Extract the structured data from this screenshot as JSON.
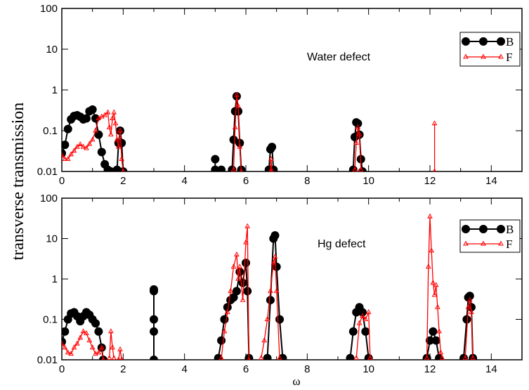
{
  "ylabel": "transverse transmission",
  "xlabel": "ω",
  "chart_data": [
    {
      "type": "line",
      "annotation": "Water defect",
      "xlim": [
        0,
        15
      ],
      "ylim": [
        0.01,
        100
      ],
      "yscale": "log",
      "xticks": [
        "0",
        "2",
        "4",
        "6",
        "8",
        "10",
        "12",
        "14"
      ],
      "yticks": [
        "0.01",
        "0.1",
        "1",
        "10",
        "100"
      ],
      "legend": "top-right",
      "series": [
        {
          "name": "B",
          "color": "#000000",
          "marker": "circle",
          "segments": [
            [
              [
                0.0,
                0.028
              ],
              [
                0.1,
                0.045
              ],
              [
                0.2,
                0.11
              ],
              [
                0.3,
                0.19
              ],
              [
                0.4,
                0.23
              ],
              [
                0.5,
                0.24
              ],
              [
                0.6,
                0.22
              ],
              [
                0.7,
                0.19
              ],
              [
                0.8,
                0.2
              ],
              [
                0.9,
                0.3
              ],
              [
                1.0,
                0.33
              ],
              [
                1.1,
                0.2
              ],
              [
                1.2,
                0.08
              ],
              [
                1.3,
                0.03
              ],
              [
                1.4,
                0.015
              ],
              [
                1.5,
                0.011
              ],
              [
                1.6,
                0.01
              ]
            ],
            [
              [
                1.8,
                0.011
              ],
              [
                1.85,
                0.05
              ],
              [
                1.9,
                0.1
              ],
              [
                1.95,
                0.05
              ],
              [
                2.0,
                0.01
              ]
            ],
            [
              [
                5.0,
                0.02
              ],
              [
                5.0,
                0.011
              ]
            ],
            [
              [
                5.2,
                0.011
              ]
            ],
            [
              [
                5.55,
                0.011
              ],
              [
                5.6,
                0.06
              ],
              [
                5.65,
                0.3
              ],
              [
                5.7,
                0.7
              ],
              [
                5.75,
                0.3
              ],
              [
                5.8,
                0.05
              ],
              [
                5.85,
                0.011
              ]
            ],
            [
              [
                6.75,
                0.011
              ],
              [
                6.8,
                0.035
              ],
              [
                6.85,
                0.04
              ],
              [
                6.9,
                0.011
              ]
            ],
            [
              [
                9.5,
                0.011
              ],
              [
                9.55,
                0.07
              ],
              [
                9.6,
                0.16
              ],
              [
                9.65,
                0.15
              ],
              [
                9.7,
                0.08
              ],
              [
                9.75,
                0.02
              ],
              [
                9.8,
                0.01
              ]
            ]
          ]
        },
        {
          "name": "F",
          "color": "#ff0000",
          "marker": "triangle",
          "segments": [
            [
              [
                0.0,
                0.025
              ],
              [
                0.1,
                0.02
              ],
              [
                0.2,
                0.02
              ],
              [
                0.3,
                0.026
              ],
              [
                0.4,
                0.032
              ],
              [
                0.5,
                0.04
              ],
              [
                0.6,
                0.046
              ],
              [
                0.7,
                0.04
              ],
              [
                0.8,
                0.037
              ],
              [
                0.9,
                0.047
              ],
              [
                1.0,
                0.06
              ],
              [
                1.1,
                0.1
              ],
              [
                1.2,
                0.2
              ],
              [
                1.3,
                0.22
              ],
              [
                1.4,
                0.24
              ],
              [
                1.5,
                0.28
              ],
              [
                1.55,
                0.12
              ],
              [
                1.6,
                0.08
              ],
              [
                1.65,
                0.2
              ],
              [
                1.7,
                0.28
              ],
              [
                1.75,
                0.15
              ],
              [
                1.8,
                0.06
              ],
              [
                1.85,
                0.04
              ],
              [
                1.9,
                0.1
              ],
              [
                1.95,
                0.02
              ],
              [
                2.0,
                0.01
              ]
            ],
            [
              [
                5.6,
                0.011
              ],
              [
                5.65,
                0.12
              ],
              [
                5.7,
                0.75
              ],
              [
                5.75,
                0.4
              ],
              [
                5.8,
                0.04
              ],
              [
                5.85,
                0.01
              ]
            ],
            [
              [
                6.8,
                0.01
              ],
              [
                6.82,
                0.02
              ],
              [
                6.85,
                0.01
              ]
            ],
            [
              [
                9.55,
                0.011
              ],
              [
                9.6,
                0.05
              ],
              [
                9.65,
                0.12
              ],
              [
                9.7,
                0.08
              ],
              [
                9.75,
                0.011
              ]
            ],
            [
              [
                12.15,
                0.01
              ],
              [
                12.15,
                0.15
              ]
            ]
          ]
        }
      ]
    },
    {
      "type": "line",
      "annotation": "Hg defect",
      "xlim": [
        0,
        15
      ],
      "ylim": [
        0.01,
        100
      ],
      "yscale": "log",
      "xticks": [
        "0",
        "2",
        "4",
        "6",
        "8",
        "10",
        "12",
        "14"
      ],
      "yticks": [
        "0.01",
        "0.1",
        "1",
        "10",
        "100"
      ],
      "legend": "top-right",
      "series": [
        {
          "name": "B",
          "color": "#000000",
          "marker": "circle",
          "segments": [
            [
              [
                0.0,
                0.028
              ],
              [
                0.1,
                0.05
              ],
              [
                0.2,
                0.1
              ],
              [
                0.3,
                0.14
              ],
              [
                0.4,
                0.15
              ],
              [
                0.5,
                0.12
              ],
              [
                0.6,
                0.09
              ],
              [
                0.7,
                0.12
              ],
              [
                0.8,
                0.15
              ],
              [
                0.9,
                0.13
              ],
              [
                1.0,
                0.1
              ],
              [
                1.1,
                0.08
              ],
              [
                1.2,
                0.05
              ],
              [
                1.3,
                0.02
              ],
              [
                1.35,
                0.01
              ]
            ],
            [
              [
                3.0,
                0.01
              ],
              [
                3.0,
                0.05
              ],
              [
                3.0,
                0.1
              ],
              [
                3.0,
                0.5
              ],
              [
                3.0,
                0.55
              ]
            ],
            [
              [
                5.1,
                0.011
              ],
              [
                5.2,
                0.03
              ],
              [
                5.3,
                0.1
              ],
              [
                5.4,
                0.2
              ],
              [
                5.5,
                0.3
              ],
              [
                5.6,
                0.35
              ],
              [
                5.7,
                0.5
              ],
              [
                5.8,
                1.5
              ],
              [
                5.9,
                0.8
              ],
              [
                6.0,
                2.5
              ],
              [
                6.05,
                0.5
              ],
              [
                6.1,
                0.011
              ]
            ],
            [
              [
                6.7,
                0.011
              ],
              [
                6.8,
                0.3
              ],
              [
                6.9,
                10
              ],
              [
                6.95,
                12
              ],
              [
                7.0,
                2
              ],
              [
                7.1,
                0.1
              ],
              [
                7.2,
                0.011
              ]
            ],
            [
              [
                9.4,
                0.011
              ],
              [
                9.5,
                0.05
              ],
              [
                9.6,
                0.15
              ],
              [
                9.7,
                0.2
              ],
              [
                9.8,
                0.15
              ],
              [
                9.9,
                0.05
              ],
              [
                10.0,
                0.011
              ]
            ],
            [
              [
                11.9,
                0.011
              ],
              [
                12.0,
                0.03
              ],
              [
                12.1,
                0.05
              ],
              [
                12.2,
                0.03
              ],
              [
                12.3,
                0.011
              ]
            ],
            [
              [
                13.1,
                0.011
              ],
              [
                13.2,
                0.1
              ],
              [
                13.25,
                0.35
              ],
              [
                13.3,
                0.38
              ],
              [
                13.35,
                0.2
              ],
              [
                13.4,
                0.011
              ]
            ]
          ]
        },
        {
          "name": "F",
          "color": "#ff0000",
          "marker": "triangle",
          "segments": [
            [
              [
                0.0,
                0.025
              ],
              [
                0.1,
                0.02
              ],
              [
                0.2,
                0.015
              ],
              [
                0.3,
                0.014
              ],
              [
                0.4,
                0.02
              ],
              [
                0.5,
                0.025
              ],
              [
                0.6,
                0.035
              ],
              [
                0.7,
                0.05
              ],
              [
                0.8,
                0.045
              ],
              [
                0.9,
                0.03
              ],
              [
                1.0,
                0.02
              ],
              [
                1.1,
                0.014
              ],
              [
                1.2,
                0.015
              ],
              [
                1.3,
                0.02
              ],
              [
                1.35,
                0.01
              ]
            ],
            [
              [
                1.55,
                0.011
              ],
              [
                1.6,
                0.05
              ],
              [
                1.65,
                0.02
              ],
              [
                1.7,
                0.011
              ]
            ],
            [
              [
                1.85,
                0.01
              ],
              [
                1.9,
                0.018
              ],
              [
                1.95,
                0.01
              ]
            ],
            [
              [
                5.2,
                0.011
              ],
              [
                5.3,
                0.05
              ],
              [
                5.4,
                0.15
              ],
              [
                5.5,
                0.5
              ],
              [
                5.6,
                2
              ],
              [
                5.7,
                4
              ],
              [
                5.75,
                1
              ],
              [
                5.8,
                2
              ],
              [
                5.9,
                0.3
              ],
              [
                6.0,
                8
              ],
              [
                6.05,
                20
              ],
              [
                6.1,
                0.01
              ]
            ],
            [
              [
                6.5,
                0.011
              ],
              [
                6.6,
                0.03
              ],
              [
                6.7,
                0.1
              ],
              [
                6.8,
                0.5
              ],
              [
                6.9,
                2.5
              ],
              [
                6.95,
                3.5
              ],
              [
                7.0,
                0.5
              ],
              [
                7.1,
                0.011
              ]
            ],
            [
              [
                9.6,
                0.011
              ],
              [
                9.7,
                0.08
              ],
              [
                9.8,
                0.12
              ],
              [
                9.9,
                0.1
              ],
              [
                10.0,
                0.15
              ],
              [
                10.05,
                0.011
              ]
            ],
            [
              [
                11.9,
                0.011
              ],
              [
                11.95,
                2
              ],
              [
                12.0,
                35
              ],
              [
                12.05,
                5
              ],
              [
                12.1,
                0.8
              ],
              [
                12.15,
                0.4
              ],
              [
                12.2,
                0.7
              ],
              [
                12.25,
                0.2
              ],
              [
                12.3,
                0.05
              ],
              [
                12.35,
                0.015
              ],
              [
                12.4,
                0.011
              ]
            ],
            [
              [
                13.15,
                0.011
              ],
              [
                13.25,
                0.2
              ],
              [
                13.3,
                0.3
              ],
              [
                13.35,
                0.15
              ],
              [
                13.4,
                0.011
              ]
            ]
          ]
        }
      ]
    }
  ]
}
